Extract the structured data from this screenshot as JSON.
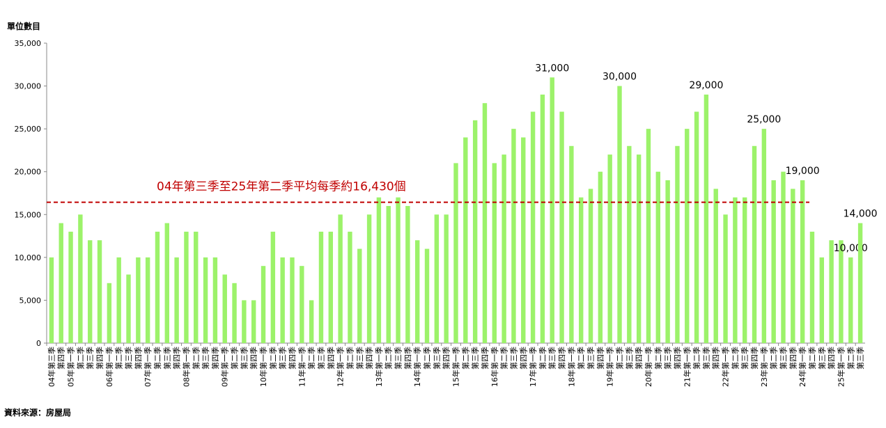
{
  "chart_data": {
    "type": "bar",
    "y_label": "單位數目",
    "source": "資料來源：房屋局",
    "color": "#9cf26a",
    "categories": [
      "04年第三季",
      "第四季",
      "05年第一季",
      "第二季",
      "第三季",
      "第四季",
      "06年第一季",
      "第二季",
      "第三季",
      "第四季",
      "07年第一季",
      "第二季",
      "第三季",
      "第四季",
      "08年第一季",
      "第二季",
      "第三季",
      "第四季",
      "09年第一季",
      "第二季",
      "第三季",
      "第四季",
      "10年第一季",
      "第二季",
      "第三季",
      "第四季",
      "11年第一季",
      "第二季",
      "第三季",
      "第四季",
      "12年第一季",
      "第二季",
      "第三季",
      "第四季",
      "13年第一季",
      "第二季",
      "第三季",
      "第四季",
      "14年第一季",
      "第二季",
      "第三季",
      "第四季",
      "15年第一季",
      "第二季",
      "第三季",
      "第四季",
      "16年第一季",
      "第二季",
      "第三季",
      "第四季",
      "17年第一季",
      "第二季",
      "第三季",
      "第四季",
      "18年第一季",
      "第二季",
      "第三季",
      "第四季",
      "19年第一季",
      "第二季",
      "第三季",
      "第四季",
      "20年第一季",
      "第二季",
      "第三季",
      "第四季",
      "21年第一季",
      "第二季",
      "第三季",
      "第四季",
      "22年第一季",
      "第二季",
      "第三季",
      "第四季",
      "23年第一季",
      "第二季",
      "第三季",
      "第四季",
      "24年第一季",
      "第二季",
      "第三季",
      "第四季",
      "25年第一季",
      "第二季",
      "第三季"
    ],
    "values": [
      10000,
      14000,
      13000,
      15000,
      12000,
      12000,
      7000,
      10000,
      8000,
      10000,
      10000,
      13000,
      14000,
      10000,
      13000,
      13000,
      10000,
      10000,
      8000,
      7000,
      5000,
      5000,
      9000,
      13000,
      10000,
      10000,
      9000,
      5000,
      13000,
      13000,
      15000,
      13000,
      11000,
      15000,
      17000,
      16000,
      17000,
      16000,
      12000,
      11000,
      15000,
      15000,
      21000,
      24000,
      26000,
      28000,
      21000,
      22000,
      25000,
      24000,
      27000,
      29000,
      31000,
      27000,
      23000,
      17000,
      18000,
      20000,
      22000,
      30000,
      23000,
      22000,
      25000,
      20000,
      19000,
      23000,
      25000,
      27000,
      29000,
      18000,
      15000,
      17000,
      17000,
      23000,
      25000,
      19000,
      20000,
      18000,
      19000,
      13000,
      10000,
      12000,
      12000,
      10000,
      14000
    ],
    "value_labels": [
      null,
      null,
      null,
      null,
      null,
      null,
      null,
      null,
      null,
      null,
      null,
      null,
      null,
      null,
      null,
      null,
      null,
      null,
      null,
      null,
      null,
      null,
      null,
      null,
      null,
      null,
      null,
      null,
      null,
      null,
      null,
      null,
      null,
      null,
      null,
      null,
      null,
      null,
      null,
      null,
      null,
      null,
      null,
      null,
      null,
      null,
      null,
      null,
      null,
      null,
      null,
      null,
      "31,000",
      null,
      null,
      null,
      null,
      null,
      null,
      "30,000",
      null,
      null,
      null,
      null,
      null,
      null,
      null,
      null,
      "29,000",
      null,
      null,
      null,
      null,
      null,
      "25,000",
      null,
      null,
      null,
      "19,000",
      null,
      null,
      null,
      null,
      "10,000",
      "14,000"
    ],
    "average": {
      "value": 16430,
      "label": "04年第三季至25年第二季平均每季約16,430個",
      "color": "#c00000"
    },
    "ylim": [
      0,
      35000
    ],
    "yticks": [
      0,
      {
        "value": 5000,
        "label": "5,000"
      },
      {
        "value": 10000,
        "label": "10,000"
      },
      {
        "value": 15000,
        "label": "15,000"
      },
      {
        "value": 20000,
        "label": "20,000"
      },
      {
        "value": 25000,
        "label": "25,000"
      },
      {
        "value": 30000,
        "label": "30,000"
      },
      {
        "value": 35000,
        "label": "35,000"
      }
    ]
  }
}
